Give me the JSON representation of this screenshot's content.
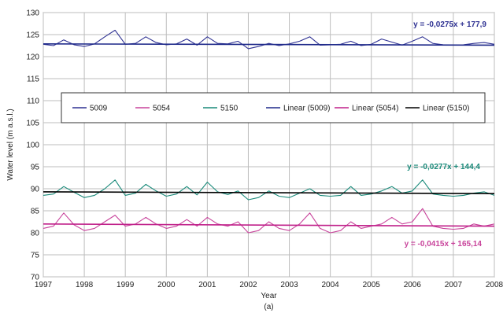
{
  "chart_data": {
    "type": "line",
    "xlabel": "Year",
    "ylabel": "Water level (m a.s.l.)",
    "caption": "(a)",
    "xlim": [
      1997,
      2008
    ],
    "ylim": [
      70,
      130
    ],
    "x_ticks": [
      "1997",
      "1998",
      "1999",
      "2000",
      "2001",
      "2002",
      "2003",
      "2004",
      "2005",
      "2006",
      "2007",
      "2008"
    ],
    "y_ticks": [
      "70",
      "75",
      "80",
      "85",
      "90",
      "95",
      "100",
      "105",
      "110",
      "115",
      "120",
      "125",
      "130"
    ],
    "grid": true,
    "legend_position": "inside-center",
    "colors": {
      "s5009": "#2e3192",
      "s5054": "#c8439b",
      "s5150": "#1a8a7a",
      "lin5009": "#1f2a8a",
      "lin5054": "#c0208a",
      "lin5150": "#000000"
    },
    "series": [
      {
        "name": "5009",
        "x": [
          1997.0,
          1997.25,
          1997.5,
          1997.75,
          1998.0,
          1998.25,
          1998.5,
          1998.75,
          1999.0,
          1999.25,
          1999.5,
          1999.75,
          2000.0,
          2000.25,
          2000.5,
          2000.75,
          2001.0,
          2001.25,
          2001.5,
          2001.75,
          2002.0,
          2002.25,
          2002.5,
          2002.75,
          2003.0,
          2003.25,
          2003.5,
          2003.75,
          2004.0,
          2004.25,
          2004.5,
          2004.75,
          2005.0,
          2005.25,
          2005.5,
          2005.75,
          2006.0,
          2006.25,
          2006.5,
          2006.75,
          2007.0,
          2007.25,
          2007.5,
          2007.75,
          2008.0
        ],
        "y": [
          122.8,
          122.5,
          123.8,
          122.7,
          122.3,
          122.9,
          124.5,
          126.0,
          122.8,
          123.0,
          124.5,
          123.2,
          122.7,
          122.9,
          124.0,
          122.6,
          124.5,
          123.0,
          122.9,
          123.5,
          121.8,
          122.3,
          123.0,
          122.5,
          122.9,
          123.5,
          124.5,
          122.6,
          122.7,
          122.8,
          123.5,
          122.5,
          122.8,
          124.0,
          123.3,
          122.6,
          123.5,
          124.5,
          123.0,
          122.7,
          122.6,
          122.7,
          123.0,
          123.2,
          122.8
        ]
      },
      {
        "name": "5054",
        "x": [
          1997.0,
          1997.25,
          1997.5,
          1997.75,
          1998.0,
          1998.25,
          1998.5,
          1998.75,
          1999.0,
          1999.25,
          1999.5,
          1999.75,
          2000.0,
          2000.25,
          2000.5,
          2000.75,
          2001.0,
          2001.25,
          2001.5,
          2001.75,
          2002.0,
          2002.25,
          2002.5,
          2002.75,
          2003.0,
          2003.25,
          2003.5,
          2003.75,
          2004.0,
          2004.25,
          2004.5,
          2004.75,
          2005.0,
          2005.25,
          2005.5,
          2005.75,
          2006.0,
          2006.25,
          2006.5,
          2006.75,
          2007.0,
          2007.25,
          2007.5,
          2007.75,
          2008.0
        ],
        "y": [
          81.0,
          81.5,
          84.5,
          81.8,
          80.5,
          81.0,
          82.5,
          84.0,
          81.5,
          82.0,
          83.5,
          82.0,
          81.0,
          81.5,
          83.0,
          81.5,
          83.5,
          82.0,
          81.5,
          82.5,
          80.0,
          80.5,
          82.5,
          81.0,
          80.5,
          82.0,
          84.5,
          81.0,
          80.0,
          80.5,
          82.5,
          81.0,
          81.5,
          82.0,
          83.5,
          82.0,
          82.5,
          85.5,
          81.5,
          81.0,
          80.8,
          81.0,
          82.0,
          81.5,
          82.0
        ]
      },
      {
        "name": "5150",
        "x": [
          1997.0,
          1997.25,
          1997.5,
          1997.75,
          1998.0,
          1998.25,
          1998.5,
          1998.75,
          1999.0,
          1999.25,
          1999.5,
          1999.75,
          2000.0,
          2000.25,
          2000.5,
          2000.75,
          2001.0,
          2001.25,
          2001.5,
          2001.75,
          2002.0,
          2002.25,
          2002.5,
          2002.75,
          2003.0,
          2003.25,
          2003.5,
          2003.75,
          2004.0,
          2004.25,
          2004.5,
          2004.75,
          2005.0,
          2005.25,
          2005.5,
          2005.75,
          2006.0,
          2006.25,
          2006.5,
          2006.75,
          2007.0,
          2007.25,
          2007.5,
          2007.75,
          2008.0
        ],
        "y": [
          88.5,
          88.8,
          90.5,
          89.2,
          88.0,
          88.5,
          90.0,
          92.0,
          88.5,
          89.0,
          91.0,
          89.5,
          88.3,
          88.8,
          90.5,
          88.6,
          91.5,
          89.3,
          88.7,
          89.5,
          87.5,
          88.0,
          89.5,
          88.3,
          88.0,
          89.0,
          90.0,
          88.5,
          88.3,
          88.5,
          90.5,
          88.5,
          88.8,
          89.5,
          90.5,
          89.0,
          89.5,
          92.0,
          88.8,
          88.5,
          88.3,
          88.5,
          89.0,
          89.3,
          88.5
        ]
      },
      {
        "name": "Linear (5009)",
        "x": [
          1997,
          2008
        ],
        "y": [
          122.9,
          122.6
        ]
      },
      {
        "name": "Linear (5054)",
        "x": [
          1997,
          2008
        ],
        "y": [
          82.0,
          81.5
        ]
      },
      {
        "name": "Linear (5150)",
        "x": [
          1997,
          2008
        ],
        "y": [
          89.3,
          88.9
        ]
      }
    ],
    "annotations": [
      {
        "text": "y = -0,0275x + 177,9",
        "series": "5009"
      },
      {
        "text": "y = -0,0277x + 144,4",
        "series": "5150"
      },
      {
        "text": "y = -0,0415x + 165,14",
        "series": "5054"
      }
    ]
  }
}
